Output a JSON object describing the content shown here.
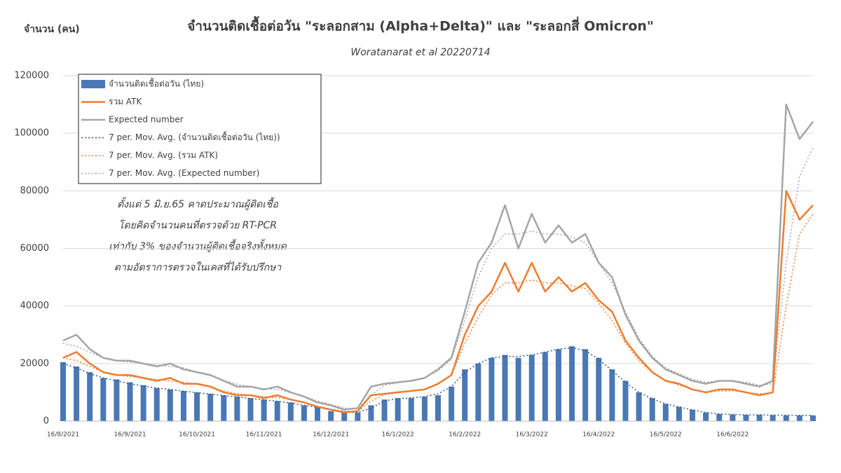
{
  "chart_data": {
    "type": "combo",
    "title": "จำนวนติดเชื้อต่อวัน \"ระลอกสาม (Alpha+Delta)\"  และ \"ระลอกสี่ Omicron\"",
    "subtitle": "Woratanarat et al 20220714",
    "y_axis_label": "จำนวน (คน)",
    "annotation": [
      "ตั้งแต่ 5 มิ.ย.65 คาดประมาณผู้ติดเชื้อ",
      "โดยคิดจำนวนคนที่ตรวจด้วย RT-PCR",
      "เท่ากับ 3% ของจำนวนผู้ติดเชื้อจริงทั้งหมด",
      "ตามอัตราการตรวจในเคสที่ได้รับปรึกษา"
    ],
    "categories": [
      "16/8/2021",
      null,
      null,
      null,
      null,
      "16/9/2021",
      null,
      null,
      null,
      null,
      "16/10/2021",
      null,
      null,
      null,
      null,
      "16/11/2021",
      null,
      null,
      null,
      null,
      "16/12/2021",
      null,
      null,
      null,
      null,
      "16/1/2022",
      null,
      null,
      null,
      null,
      "16/2/2022",
      null,
      null,
      null,
      null,
      "16/3/2022",
      null,
      null,
      null,
      null,
      "16/4/2022",
      null,
      null,
      null,
      null,
      "16/5/2022",
      null,
      null,
      null,
      null,
      "16/6/2022",
      null,
      null,
      null,
      null,
      null,
      null
    ],
    "ylim": [
      0,
      120000
    ],
    "yticks": [
      0,
      20000,
      40000,
      60000,
      80000,
      100000,
      120000
    ],
    "grid": true,
    "legend": "top-left",
    "series": [
      {
        "name": "จำนวนติดเชื้อต่อวัน (ไทย)",
        "type": "bar",
        "color": "#4a78b5",
        "values": [
          20500,
          19000,
          17000,
          15000,
          14500,
          13500,
          12500,
          11500,
          11000,
          10500,
          10000,
          9500,
          9000,
          8500,
          8000,
          7500,
          7000,
          6500,
          5500,
          5000,
          3500,
          3000,
          3000,
          5500,
          7500,
          8000,
          8000,
          8500,
          9000,
          12000,
          18000,
          20000,
          22000,
          23000,
          22000,
          23000,
          24000,
          25000,
          26000,
          25000,
          22000,
          18000,
          14000,
          10000,
          8000,
          6000,
          5000,
          4000,
          3000,
          2500,
          2300,
          2200,
          2200,
          2100,
          2000,
          2000,
          2000
        ]
      },
      {
        "name": "รวม ATK",
        "type": "line",
        "style": "solid",
        "color": "#ed7d31",
        "values": [
          22000,
          24000,
          20000,
          17000,
          16000,
          16000,
          15000,
          14000,
          15000,
          13000,
          13000,
          12000,
          10000,
          9000,
          9000,
          8000,
          9000,
          7500,
          6500,
          5000,
          4000,
          3000,
          3500,
          9000,
          9500,
          10000,
          10500,
          11000,
          13000,
          16000,
          30000,
          40000,
          45000,
          55000,
          45000,
          55000,
          45000,
          50000,
          45000,
          48000,
          42000,
          38000,
          28000,
          22000,
          17000,
          14000,
          13000,
          11000,
          10000,
          11000,
          11000,
          10000,
          9000,
          10000,
          80000,
          70000,
          75000
        ]
      },
      {
        "name": "Expected number",
        "type": "line",
        "style": "solid",
        "color": "#a5a5a5",
        "values": [
          28000,
          30000,
          25000,
          22000,
          21000,
          21000,
          20000,
          19000,
          20000,
          18000,
          17000,
          16000,
          14000,
          12000,
          12000,
          11000,
          12000,
          10000,
          8500,
          6500,
          5500,
          4000,
          4500,
          12000,
          13000,
          13500,
          14000,
          15000,
          18000,
          22000,
          38000,
          55000,
          62000,
          75000,
          60000,
          72000,
          62000,
          68000,
          62000,
          65000,
          55000,
          50000,
          37000,
          28000,
          22000,
          18000,
          16000,
          14000,
          13000,
          14000,
          14000,
          13000,
          12000,
          14000,
          110000,
          98000,
          104000
        ]
      },
      {
        "name": "7 per. Mov. Avg. (จำนวนติดเชื้อต่อวัน (ไทย))",
        "type": "line",
        "style": "dotted",
        "color": "#2e5a88",
        "values": [
          20000,
          18500,
          16500,
          15000,
          14000,
          13000,
          12200,
          11500,
          11000,
          10400,
          9900,
          9400,
          8900,
          8400,
          7900,
          7400,
          6900,
          6300,
          5500,
          4800,
          3900,
          3300,
          3000,
          4500,
          7000,
          7800,
          8100,
          8500,
          9500,
          12000,
          17000,
          20000,
          22000,
          22500,
          22500,
          23000,
          24000,
          25000,
          25500,
          24500,
          21500,
          17500,
          13500,
          10000,
          7800,
          6000,
          4900,
          3900,
          3000,
          2500,
          2300,
          2200,
          2200,
          2100,
          2050,
          2000,
          2000
        ]
      },
      {
        "name": "7 per. Mov. Avg. (รวม ATK)",
        "type": "line",
        "style": "dotted",
        "color": "#ed7d31",
        "values": [
          22000,
          21000,
          19000,
          17000,
          16000,
          15500,
          15000,
          14500,
          14000,
          13500,
          12800,
          11800,
          10500,
          9500,
          9000,
          8500,
          8200,
          7500,
          6500,
          5200,
          4200,
          3400,
          3400,
          7000,
          9200,
          9900,
          10400,
          11000,
          12800,
          16000,
          27000,
          36000,
          44000,
          48000,
          48000,
          49000,
          48000,
          48000,
          47000,
          46000,
          41000,
          35000,
          27000,
          21000,
          17000,
          14000,
          12500,
          11000,
          10200,
          10500,
          10500,
          10000,
          9500,
          9800,
          40000,
          65000,
          72000
        ]
      },
      {
        "name": "7 per. Mov. Avg. (Expected number)",
        "type": "line",
        "style": "dotted",
        "color": "#a5a5a5",
        "values": [
          27000,
          26000,
          24000,
          22000,
          21000,
          20500,
          20000,
          19500,
          19000,
          18500,
          17000,
          15800,
          14200,
          12800,
          12000,
          11300,
          11000,
          10000,
          8700,
          7000,
          5800,
          4500,
          4500,
          9000,
          12500,
          13300,
          14000,
          15000,
          17500,
          21500,
          35000,
          50000,
          60000,
          65000,
          65000,
          66000,
          65000,
          65000,
          64000,
          62000,
          55000,
          48000,
          38000,
          29000,
          22500,
          18500,
          16500,
          14500,
          13500,
          14000,
          14000,
          13500,
          12500,
          13000,
          55000,
          85000,
          95000
        ]
      }
    ]
  }
}
